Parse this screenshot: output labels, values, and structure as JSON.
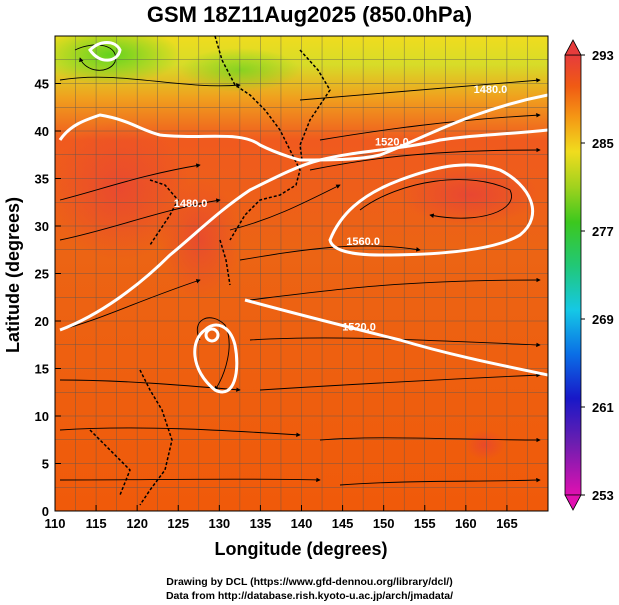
{
  "title": "GSM 18Z11Aug2025 (850.0hPa)",
  "xlabel": "Longitude (degrees)",
  "ylabel": "Latitude  (degrees)",
  "credits": [
    "Drawing by DCL (https://www.gfd-dennou.org/library/dcl/)",
    "Data from http://database.rish.kyoto-u.ac.jp/arch/jmadata/"
  ],
  "x_ticks": [
    110,
    115,
    120,
    125,
    130,
    135,
    140,
    145,
    150,
    155,
    160,
    165
  ],
  "y_ticks": [
    0,
    5,
    10,
    15,
    20,
    25,
    30,
    35,
    40,
    45
  ],
  "x_range": [
    110,
    170
  ],
  "y_range": [
    0,
    50
  ],
  "colorbar": {
    "ticks": [
      293,
      285,
      277,
      269,
      261,
      253
    ],
    "range": [
      253,
      293
    ],
    "colors": [
      "#e010b0",
      "#6a1eb0",
      "#1818c8",
      "#0a6ee6",
      "#15c8e6",
      "#21c878",
      "#3cc81e",
      "#a0d21e",
      "#f0dc1e",
      "#f59614",
      "#f05a14",
      "#e63c3c"
    ]
  },
  "contour_labels": [
    {
      "text": "1480.0",
      "lon": 163,
      "lat": 44
    },
    {
      "text": "1520.0",
      "lon": 151,
      "lat": 38.5
    },
    {
      "text": "1480.0",
      "lon": 126.5,
      "lat": 32
    },
    {
      "text": "1560.0",
      "lon": 147.5,
      "lat": 28
    },
    {
      "text": "1520.0",
      "lon": 147,
      "lat": 19
    }
  ],
  "chart_data": {
    "type": "heatmap",
    "variable": "temperature with geopotential height contours and streamlines",
    "xlabel": "Longitude (degrees)",
    "ylabel": "Latitude  (degrees)",
    "xlim": [
      110,
      170
    ],
    "ylim": [
      0,
      50
    ],
    "color_range": [
      253,
      293
    ],
    "contour_levels": [
      1480.0,
      1520.0,
      1560.0
    ]
  }
}
